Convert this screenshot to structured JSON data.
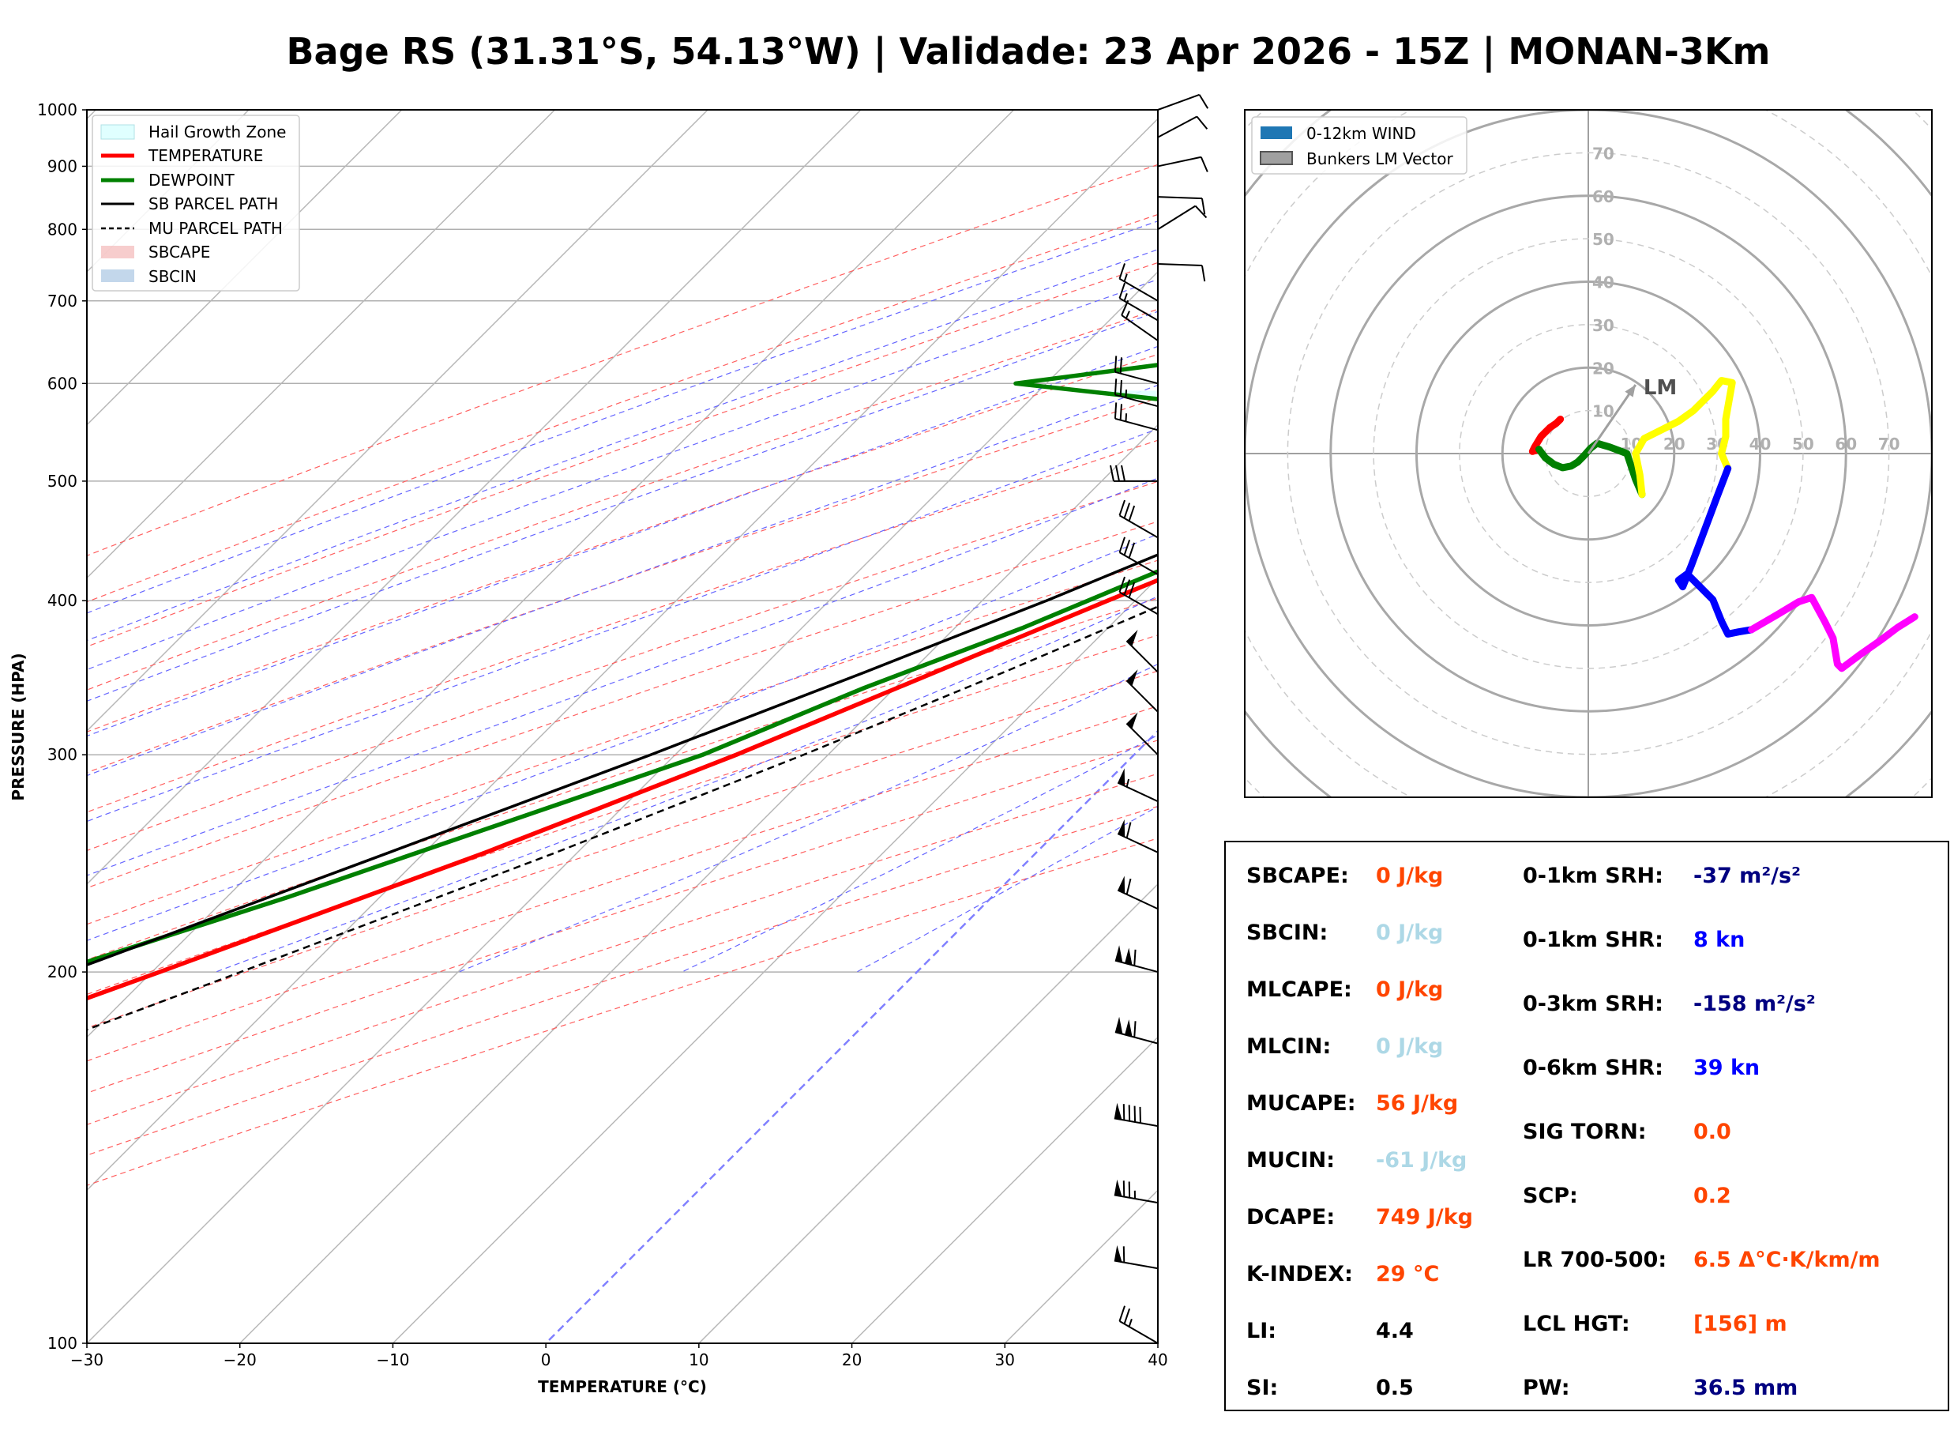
{
  "title": "Bage RS (31.31°S, 54.13°W) | Validade: 23 Apr 2026 - 15Z | MONAN-3Km",
  "chart_data": [
    {
      "type": "line",
      "chart": "skew-t",
      "xlabel": "TEMPERATURE (°C)",
      "ylabel": "PRESSURE (HPA)",
      "xlim": [
        -30,
        40
      ],
      "ylim": [
        1000,
        100
      ],
      "y_scale": "log",
      "x_ticks": [
        -30,
        -20,
        -10,
        0,
        10,
        20,
        30,
        40
      ],
      "y_ticks": [
        100,
        200,
        300,
        400,
        500,
        600,
        700,
        800,
        900,
        1000
      ],
      "legend_position": "top-left",
      "legend": [
        "Hail Growth Zone",
        "TEMPERATURE",
        "DEWPOINT",
        "SB PARCEL PATH",
        "MU PARCEL PATH",
        "SBCAPE",
        "SBCIN"
      ],
      "hail_zone": {
        "p_top": 555,
        "p_bottom": 592
      },
      "series": [
        {
          "name": "TEMPERATURE",
          "color": "#ff0000",
          "points": [
            [
              1000,
              17.2
            ],
            [
              975,
              16.2
            ],
            [
              950,
              16.9
            ],
            [
              925,
              17.6
            ],
            [
              900,
              17.9
            ],
            [
              875,
              17.7
            ],
            [
              850,
              17.2
            ],
            [
              825,
              16.8
            ],
            [
              800,
              16.7
            ],
            [
              775,
              16.4
            ],
            [
              750,
              16.1
            ],
            [
              725,
              18.1
            ],
            [
              700,
              17.6
            ],
            [
              650,
              14.2
            ],
            [
              600,
              10.9
            ],
            [
              550,
              3.4
            ],
            [
              500,
              -1.1
            ],
            [
              450,
              -5.8
            ],
            [
              400,
              -11.8
            ],
            [
              350,
              -18.4
            ],
            [
              300,
              -26.0
            ],
            [
              250,
              -36.0
            ],
            [
              200,
              -49.5
            ],
            [
              175,
              -57.8
            ],
            [
              150,
              -60.7
            ],
            [
              125,
              -62.3
            ],
            [
              110,
              -63.0
            ],
            [
              100,
              -64.8
            ]
          ]
        },
        {
          "name": "DEWPOINT",
          "color": "#008000",
          "points": [
            [
              1000,
              15.6
            ],
            [
              975,
              15.0
            ],
            [
              950,
              15.4
            ],
            [
              925,
              16.1
            ],
            [
              900,
              16.3
            ],
            [
              875,
              16.4
            ],
            [
              850,
              16.0
            ],
            [
              825,
              14.8
            ],
            [
              800,
              12.5
            ],
            [
              775,
              10.8
            ],
            [
              750,
              8.4
            ],
            [
              725,
              4.5
            ],
            [
              700,
              1.2
            ],
            [
              650,
              -13.2
            ],
            [
              600,
              -32.0
            ],
            [
              580,
              -20.0
            ],
            [
              550,
              -8.0
            ],
            [
              500,
              -3.6
            ],
            [
              460,
              -6.2
            ],
            [
              420,
              -10.7
            ],
            [
              380,
              -15.6
            ],
            [
              340,
              -22.0
            ],
            [
              300,
              -28.2
            ],
            [
              260,
              -37.8
            ],
            [
              230,
              -46.0
            ],
            [
              200,
              -56.3
            ],
            [
              175,
              -65.0
            ],
            [
              150,
              -77.0
            ],
            [
              125,
              -82.0
            ],
            [
              110,
              -83.0
            ],
            [
              100,
              -82.0
            ]
          ]
        },
        {
          "name": "SB PARCEL PATH",
          "color": "#000000",
          "points": [
            [
              1000,
              15.9
            ],
            [
              950,
              15.1
            ],
            [
              900,
              14.1
            ],
            [
              850,
              12.8
            ],
            [
              800,
              11.3
            ],
            [
              750,
              9.6
            ],
            [
              700,
              7.6
            ],
            [
              650,
              5.3
            ],
            [
              600,
              2.5
            ],
            [
              550,
              -1.0
            ],
            [
              500,
              -5.0
            ],
            [
              450,
              -9.9
            ],
            [
              400,
              -15.8
            ],
            [
              350,
              -23.0
            ],
            [
              300,
              -31.6
            ],
            [
              250,
              -42.3
            ],
            [
              200,
              -55.5
            ],
            [
              175,
              -63.4
            ],
            [
              150,
              -72.4
            ],
            [
              125,
              -82.4
            ],
            [
              110,
              -89.4
            ],
            [
              100,
              -94.4
            ]
          ]
        },
        {
          "name": "MU PARCEL PATH",
          "color": "#000000",
          "dash": true,
          "points": [
            [
              1000,
              17.3
            ],
            [
              950,
              16.6
            ],
            [
              900,
              15.8
            ],
            [
              850,
              14.9
            ],
            [
              800,
              13.9
            ],
            [
              750,
              12.7
            ],
            [
              700,
              11.3
            ],
            [
              650,
              9.6
            ],
            [
              600,
              7.4
            ],
            [
              550,
              4.7
            ],
            [
              500,
              1.4
            ],
            [
              450,
              -2.6
            ],
            [
              400,
              -7.6
            ],
            [
              350,
              -13.9
            ],
            [
              300,
              -21.6
            ],
            [
              250,
              -31.4
            ],
            [
              200,
              -44.2
            ],
            [
              175,
              -52.0
            ],
            [
              150,
              -61.2
            ]
          ]
        }
      ],
      "wind_barbs": [
        {
          "p": 1000,
          "dir": 70,
          "spd": 10
        },
        {
          "p": 950,
          "dir": 62,
          "spd": 10
        },
        {
          "p": 900,
          "dir": 78,
          "spd": 10
        },
        {
          "p": 850,
          "dir": 92,
          "spd": 10
        },
        {
          "p": 800,
          "dir": 58,
          "spd": 10
        },
        {
          "p": 750,
          "dir": 92,
          "spd": 10
        },
        {
          "p": 700,
          "dir": 300,
          "spd": 15
        },
        {
          "p": 675,
          "dir": 300,
          "spd": 15
        },
        {
          "p": 650,
          "dir": 305,
          "spd": 15
        },
        {
          "p": 600,
          "dir": 285,
          "spd": 20
        },
        {
          "p": 575,
          "dir": 285,
          "spd": 25
        },
        {
          "p": 550,
          "dir": 285,
          "spd": 25
        },
        {
          "p": 500,
          "dir": 270,
          "spd": 30
        },
        {
          "p": 450,
          "dir": 300,
          "spd": 30
        },
        {
          "p": 420,
          "dir": 300,
          "spd": 30
        },
        {
          "p": 390,
          "dir": 300,
          "spd": 30
        },
        {
          "p": 350,
          "dir": 315,
          "spd": 50
        },
        {
          "p": 325,
          "dir": 315,
          "spd": 50
        },
        {
          "p": 300,
          "dir": 315,
          "spd": 50
        },
        {
          "p": 275,
          "dir": 295,
          "spd": 55
        },
        {
          "p": 250,
          "dir": 295,
          "spd": 60
        },
        {
          "p": 225,
          "dir": 295,
          "spd": 60
        },
        {
          "p": 200,
          "dir": 285,
          "spd": 110
        },
        {
          "p": 175,
          "dir": 285,
          "spd": 110
        },
        {
          "p": 150,
          "dir": 280,
          "spd": 90
        },
        {
          "p": 130,
          "dir": 280,
          "spd": 75
        },
        {
          "p": 115,
          "dir": 280,
          "spd": 60
        },
        {
          "p": 100,
          "dir": 300,
          "spd": 25
        }
      ]
    },
    {
      "type": "line",
      "chart": "hodograph",
      "xlim": [
        -80,
        80
      ],
      "ylim": [
        -80,
        80
      ],
      "ring_labels": [
        10,
        20,
        30,
        40,
        50,
        60,
        70
      ],
      "legend_position": "top-left",
      "legend": [
        "0-12km WIND",
        "Bunkers LM Vector"
      ],
      "lm_label": "LM",
      "lm_vector": [
        11,
        16
      ],
      "segments": [
        {
          "color": "#ff0000",
          "points": [
            [
              -6.5,
              8
            ],
            [
              -7.5,
              7
            ],
            [
              -9,
              6
            ],
            [
              -11,
              4
            ],
            [
              -12.5,
              1.5
            ],
            [
              -13,
              0.5
            ],
            [
              -11.5,
              1
            ]
          ]
        },
        {
          "color": "#008000",
          "points": [
            [
              -11.5,
              1
            ],
            [
              -10,
              -1
            ],
            [
              -8,
              -2.5
            ],
            [
              -6,
              -3.3
            ],
            [
              -4,
              -2.9
            ],
            [
              -2.5,
              -2
            ],
            [
              -1,
              -0.5
            ],
            [
              0.5,
              1.2
            ],
            [
              2,
              2.4
            ],
            [
              5,
              1.5
            ],
            [
              9,
              0
            ],
            [
              11,
              -6
            ],
            [
              12.5,
              -9.5
            ]
          ]
        },
        {
          "color": "#ffff00",
          "points": [
            [
              12.5,
              -9.5
            ],
            [
              12,
              -5
            ],
            [
              11,
              0
            ],
            [
              13,
              3.5
            ],
            [
              17,
              5.5
            ],
            [
              21,
              7.5
            ],
            [
              24.5,
              10
            ],
            [
              27,
              12.5
            ],
            [
              29,
              14.5
            ],
            [
              31,
              17
            ],
            [
              33.5,
              16.5
            ],
            [
              32,
              8
            ],
            [
              32,
              4
            ],
            [
              31,
              0
            ],
            [
              32.5,
              -3.5
            ]
          ]
        },
        {
          "color": "#0000ff",
          "points": [
            [
              32.5,
              -3.5
            ],
            [
              30,
              -10
            ],
            [
              27,
              -18
            ],
            [
              24,
              -26
            ],
            [
              22,
              -31
            ],
            [
              21,
              -29.5
            ],
            [
              23,
              -28
            ],
            [
              26,
              -31
            ],
            [
              29,
              -34
            ],
            [
              31,
              -39
            ],
            [
              32.5,
              -42
            ],
            [
              35,
              -41.5
            ],
            [
              38,
              -41
            ]
          ]
        },
        {
          "color": "#ff00ff",
          "points": [
            [
              38,
              -41
            ],
            [
              44,
              -37.5
            ],
            [
              49,
              -34.5
            ],
            [
              52,
              -33.5
            ],
            [
              55,
              -39
            ],
            [
              57,
              -43
            ],
            [
              58,
              -49
            ],
            [
              59,
              -50
            ],
            [
              63,
              -47
            ],
            [
              68,
              -43.5
            ],
            [
              72,
              -40.5
            ],
            [
              76,
              -38
            ]
          ]
        }
      ]
    }
  ],
  "indices": {
    "left": [
      {
        "label": "SBCAPE:",
        "value": "0 J/kg",
        "color": "#ff4500"
      },
      {
        "label": "SBCIN:",
        "value": "0 J/kg",
        "color": "#add8e6"
      },
      {
        "label": "MLCAPE:",
        "value": "0 J/kg",
        "color": "#ff4500"
      },
      {
        "label": "MLCIN:",
        "value": "0 J/kg",
        "color": "#add8e6"
      },
      {
        "label": "MUCAPE:",
        "value": "56 J/kg",
        "color": "#ff4500"
      },
      {
        "label": "MUCIN:",
        "value": "-61 J/kg",
        "color": "#add8e6"
      },
      {
        "label": "DCAPE:",
        "value": "749 J/kg",
        "color": "#ff4500"
      },
      {
        "label": "K-INDEX:",
        "value": "29 °C",
        "color": "#ff4500"
      },
      {
        "label": "LI:",
        "value": "4.4",
        "color": "#000000"
      },
      {
        "label": "SI:",
        "value": "0.5",
        "color": "#000000"
      }
    ],
    "right": [
      {
        "label": "0-1km SRH:",
        "value": "-37 m²/s²",
        "color": "#000080"
      },
      {
        "label": "0-1km SHR:",
        "value": "8 kn",
        "color": "#0000ff"
      },
      {
        "label": "0-3km SRH:",
        "value": "-158 m²/s²",
        "color": "#000080"
      },
      {
        "label": "0-6km SHR:",
        "value": "39 kn",
        "color": "#0000ff"
      },
      {
        "label": "SIG TORN:",
        "value": "0.0",
        "color": "#ff4500"
      },
      {
        "label": "SCP:",
        "value": "0.2",
        "color": "#ff4500"
      },
      {
        "label": "LR 700-500:",
        "value": "6.5 Δ°C·K/km/m",
        "color": "#ff4500"
      },
      {
        "label": "LCL HGT:",
        "value": "[156] m",
        "color": "#ff4500"
      },
      {
        "label": "PW:",
        "value": "36.5 mm",
        "color": "#000080"
      }
    ]
  }
}
